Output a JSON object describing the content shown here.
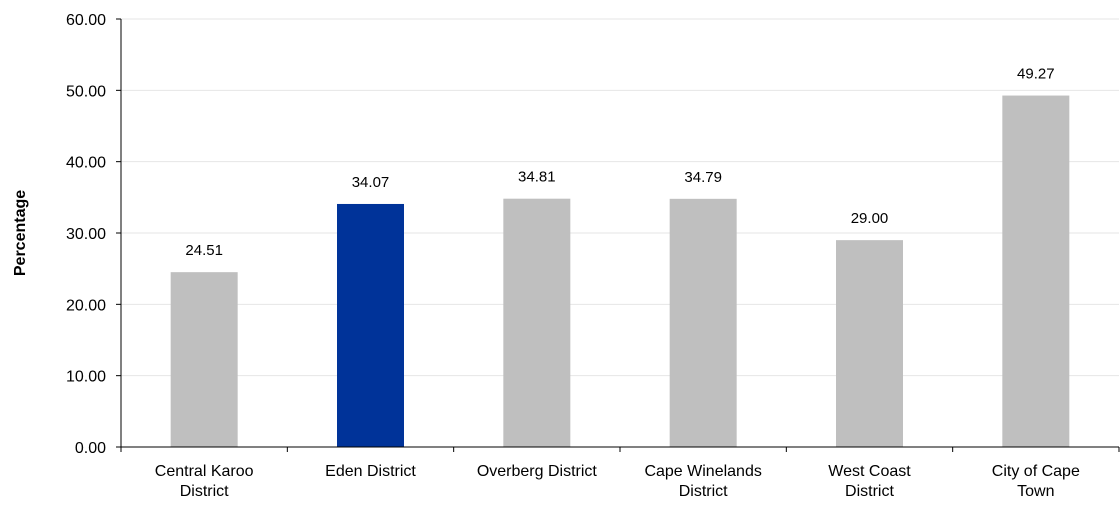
{
  "chart_data": {
    "type": "bar",
    "title": "",
    "xlabel": "",
    "ylabel": "Percentage",
    "categories": [
      [
        "Central Karoo",
        "District"
      ],
      [
        "Eden District"
      ],
      [
        "Overberg District"
      ],
      [
        "Cape Winelands",
        "District"
      ],
      [
        "West Coast",
        "District"
      ],
      [
        "City of Cape",
        "Town"
      ]
    ],
    "values": [
      24.51,
      34.07,
      34.81,
      34.79,
      29.0,
      49.27
    ],
    "value_labels": [
      "24.51",
      "34.07",
      "34.81",
      "34.79",
      "29.00",
      "49.27"
    ],
    "highlight_index": 1,
    "colors": {
      "default": "#bfbfbf",
      "highlight": "#003399",
      "grid": "#e6e6e6",
      "axis": "#000000"
    },
    "ylim": [
      0,
      60
    ],
    "yticks": [
      "0.00",
      "10.00",
      "20.00",
      "30.00",
      "40.00",
      "50.00",
      "60.00"
    ],
    "ytick_values": [
      0,
      10,
      20,
      30,
      40,
      50,
      60
    ],
    "grid": true,
    "legend": "none"
  }
}
